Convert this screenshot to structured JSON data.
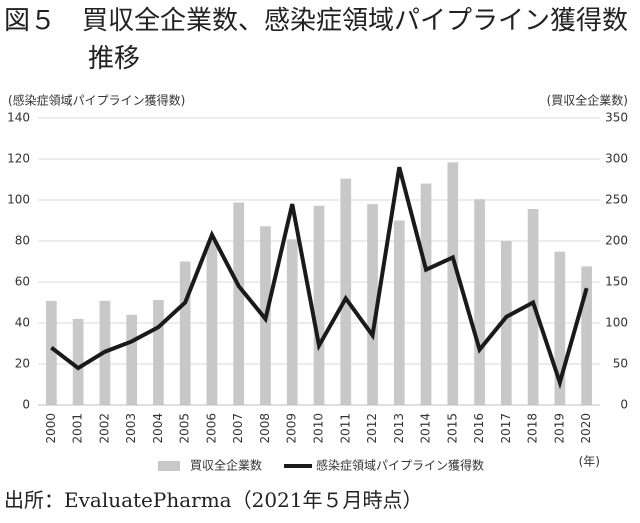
{
  "chart_data": {
    "type": "bar",
    "title": "図５　買収全企業数、感染症領域パイプライン獲得数推移",
    "ylabel": "(感染症領域パイプライン獲得数)",
    "y2label": "(買収全企業数)",
    "xlabel": "(年)",
    "source": "出所：EvaluatePharma（2021年５月時点）",
    "categories": [
      "2000",
      "2001",
      "2002",
      "2003",
      "2004",
      "2005",
      "2006",
      "2007",
      "2008",
      "2009",
      "2010",
      "2011",
      "2012",
      "2013",
      "2014",
      "2015",
      "2016",
      "2017",
      "2018",
      "2019",
      "2020"
    ],
    "series": [
      {
        "name": "買収全企業数",
        "type": "bar",
        "axis": "y2",
        "color": "#c8c8c8",
        "values": [
          127,
          105,
          127,
          110,
          128,
          175,
          200,
          247,
          218,
          202,
          243,
          276,
          245,
          225,
          270,
          296,
          251,
          200,
          239,
          187,
          169
        ]
      },
      {
        "name": "感染症領域パイプライン獲得数",
        "type": "line",
        "axis": "y",
        "color": "#1a1a1a",
        "values": [
          28,
          18,
          26,
          31,
          38,
          50,
          83,
          58,
          42,
          98,
          29,
          52,
          34,
          116,
          66,
          72,
          27,
          43,
          50,
          11,
          57
        ]
      }
    ],
    "ylim": [
      0,
      140
    ],
    "yticks": [
      0,
      20,
      40,
      60,
      80,
      100,
      120,
      140
    ],
    "y2lim": [
      0,
      350
    ],
    "y2ticks": [
      0,
      50,
      100,
      150,
      200,
      250,
      300,
      350
    ],
    "grid": true,
    "legend": "bottom"
  }
}
